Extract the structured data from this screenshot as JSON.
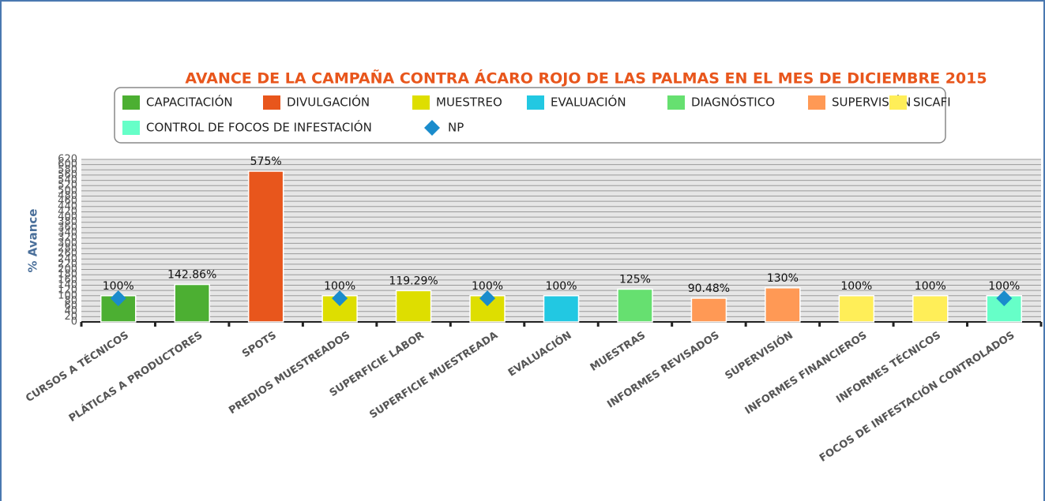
{
  "chart_data": {
    "type": "bar",
    "title": "AVANCE DE LA CAMPAÑA CONTRA ÁCARO ROJO DE LAS PALMAS EN EL MES DE DICIEMBRE 2015",
    "y_label": "% Avance",
    "categories": [
      "CURSOS A TÉCNICOS",
      "PLÁTICAS A PRODUCTORES",
      "SPOTS",
      "PREDIOS MUESTREADOS",
      "SUPERFICIE LABOR",
      "SUPERFICIE MUESTREADA",
      "EVALUACIÓN",
      "MUESTRAS",
      "INFORMES REVISADOS",
      "SUPERVISIÓN",
      "INFORMES FINANCIEROS",
      "INFORMES TÉCNICOS",
      "FOCOS DE INFESTACIÓN CONTROLADOS"
    ],
    "series": [
      {
        "name": "CAPACITACIÓN",
        "color": "#4caf32",
        "values": [
          100,
          142.86,
          null,
          null,
          null,
          null,
          null,
          null,
          null,
          null,
          null,
          null,
          null
        ],
        "value_labels": [
          "100%",
          "142.86%",
          null,
          null,
          null,
          null,
          null,
          null,
          null,
          null,
          null,
          null,
          null
        ]
      },
      {
        "name": "DIVULGACIÓN",
        "color": "#e8561c",
        "values": [
          null,
          null,
          575,
          null,
          null,
          null,
          null,
          null,
          null,
          null,
          null,
          null,
          null
        ],
        "value_labels": [
          null,
          null,
          "575%",
          null,
          null,
          null,
          null,
          null,
          null,
          null,
          null,
          null,
          null
        ]
      },
      {
        "name": "MUESTREO",
        "color": "#dede00",
        "values": [
          null,
          null,
          null,
          100,
          119.29,
          100,
          null,
          null,
          null,
          null,
          null,
          null,
          null
        ],
        "value_labels": [
          null,
          null,
          null,
          "100%",
          "119.29%",
          "100%",
          null,
          null,
          null,
          null,
          null,
          null,
          null
        ]
      },
      {
        "name": "EVALUACIÓN",
        "color": "#22c8e2",
        "values": [
          null,
          null,
          null,
          null,
          null,
          null,
          100,
          null,
          null,
          null,
          null,
          null,
          null
        ],
        "value_labels": [
          null,
          null,
          null,
          null,
          null,
          null,
          "100%",
          null,
          null,
          null,
          null,
          null,
          null
        ]
      },
      {
        "name": "DIAGNÓSTICO",
        "color": "#66e070",
        "values": [
          null,
          null,
          null,
          null,
          null,
          null,
          null,
          125,
          null,
          null,
          null,
          null,
          null
        ],
        "value_labels": [
          null,
          null,
          null,
          null,
          null,
          null,
          null,
          "125%",
          null,
          null,
          null,
          null,
          null
        ]
      },
      {
        "name": "SUPERVISIÓN",
        "color": "#ff9955",
        "values": [
          null,
          null,
          null,
          null,
          null,
          null,
          null,
          null,
          90.48,
          130,
          null,
          null,
          null
        ],
        "value_labels": [
          null,
          null,
          null,
          null,
          null,
          null,
          null,
          null,
          "90.48%",
          "130%",
          null,
          null,
          null
        ]
      },
      {
        "name": "SICAFI",
        "color": "#ffee58",
        "values": [
          null,
          null,
          null,
          null,
          null,
          null,
          null,
          null,
          null,
          null,
          100,
          100,
          null
        ],
        "value_labels": [
          null,
          null,
          null,
          null,
          null,
          null,
          null,
          null,
          null,
          null,
          "100%",
          "100%",
          null
        ]
      },
      {
        "name": "CONTROL DE FOCOS DE INFESTACIÓN",
        "color": "#66ffc8",
        "values": [
          null,
          null,
          null,
          null,
          null,
          null,
          null,
          null,
          null,
          null,
          null,
          null,
          100
        ],
        "value_labels": [
          null,
          null,
          null,
          null,
          null,
          null,
          null,
          null,
          null,
          null,
          null,
          null,
          "100%"
        ]
      },
      {
        "name": "NP",
        "type": "scatter",
        "marker": "diamond",
        "color": "#1a8ccc",
        "values": [
          90,
          null,
          null,
          90,
          null,
          90,
          null,
          null,
          null,
          null,
          null,
          null,
          90
        ]
      }
    ],
    "ylim": [
      0,
      620
    ],
    "yticks": [
      0,
      20,
      40,
      60,
      80,
      100,
      120,
      140,
      160,
      180,
      200,
      220,
      240,
      260,
      280,
      300,
      320,
      340,
      360,
      380,
      400,
      420,
      440,
      460,
      480,
      500,
      520,
      540,
      560,
      580,
      600,
      620
    ],
    "grid": true
  }
}
